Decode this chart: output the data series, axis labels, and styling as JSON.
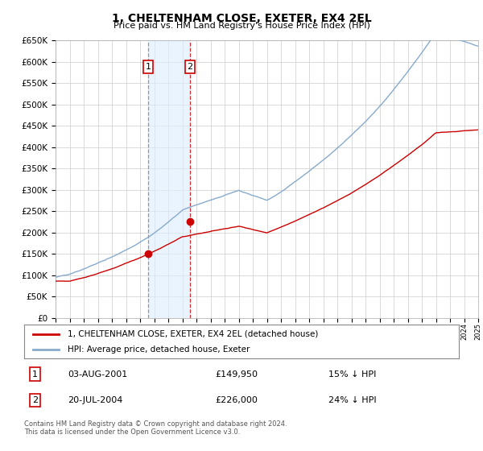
{
  "title": "1, CHELTENHAM CLOSE, EXETER, EX4 2EL",
  "subtitle": "Price paid vs. HM Land Registry's House Price Index (HPI)",
  "ylim": [
    0,
    650000
  ],
  "yticks": [
    0,
    50000,
    100000,
    150000,
    200000,
    250000,
    300000,
    350000,
    400000,
    450000,
    500000,
    550000,
    600000,
    650000
  ],
  "bg_color": "#ffffff",
  "grid_color": "#cccccc",
  "sale1_date_num": 2001.58,
  "sale2_date_num": 2004.54,
  "sale1_price": 149950,
  "sale2_price": 226000,
  "sale1_label": "1",
  "sale2_label": "2",
  "sale1_date_str": "03-AUG-2001",
  "sale2_date_str": "20-JUL-2004",
  "sale1_pct": "15% ↓ HPI",
  "sale2_pct": "24% ↓ HPI",
  "hpi_line_color": "#88aacc",
  "price_line_color": "#cc0000",
  "legend_label1": "1, CHELTENHAM CLOSE, EXETER, EX4 2EL (detached house)",
  "legend_label2": "HPI: Average price, detached house, Exeter",
  "footer": "Contains HM Land Registry data © Crown copyright and database right 2024.\nThis data is licensed under the Open Government Licence v3.0.",
  "xmin": 1995,
  "xmax": 2025,
  "shade_color": "#ddeeff"
}
